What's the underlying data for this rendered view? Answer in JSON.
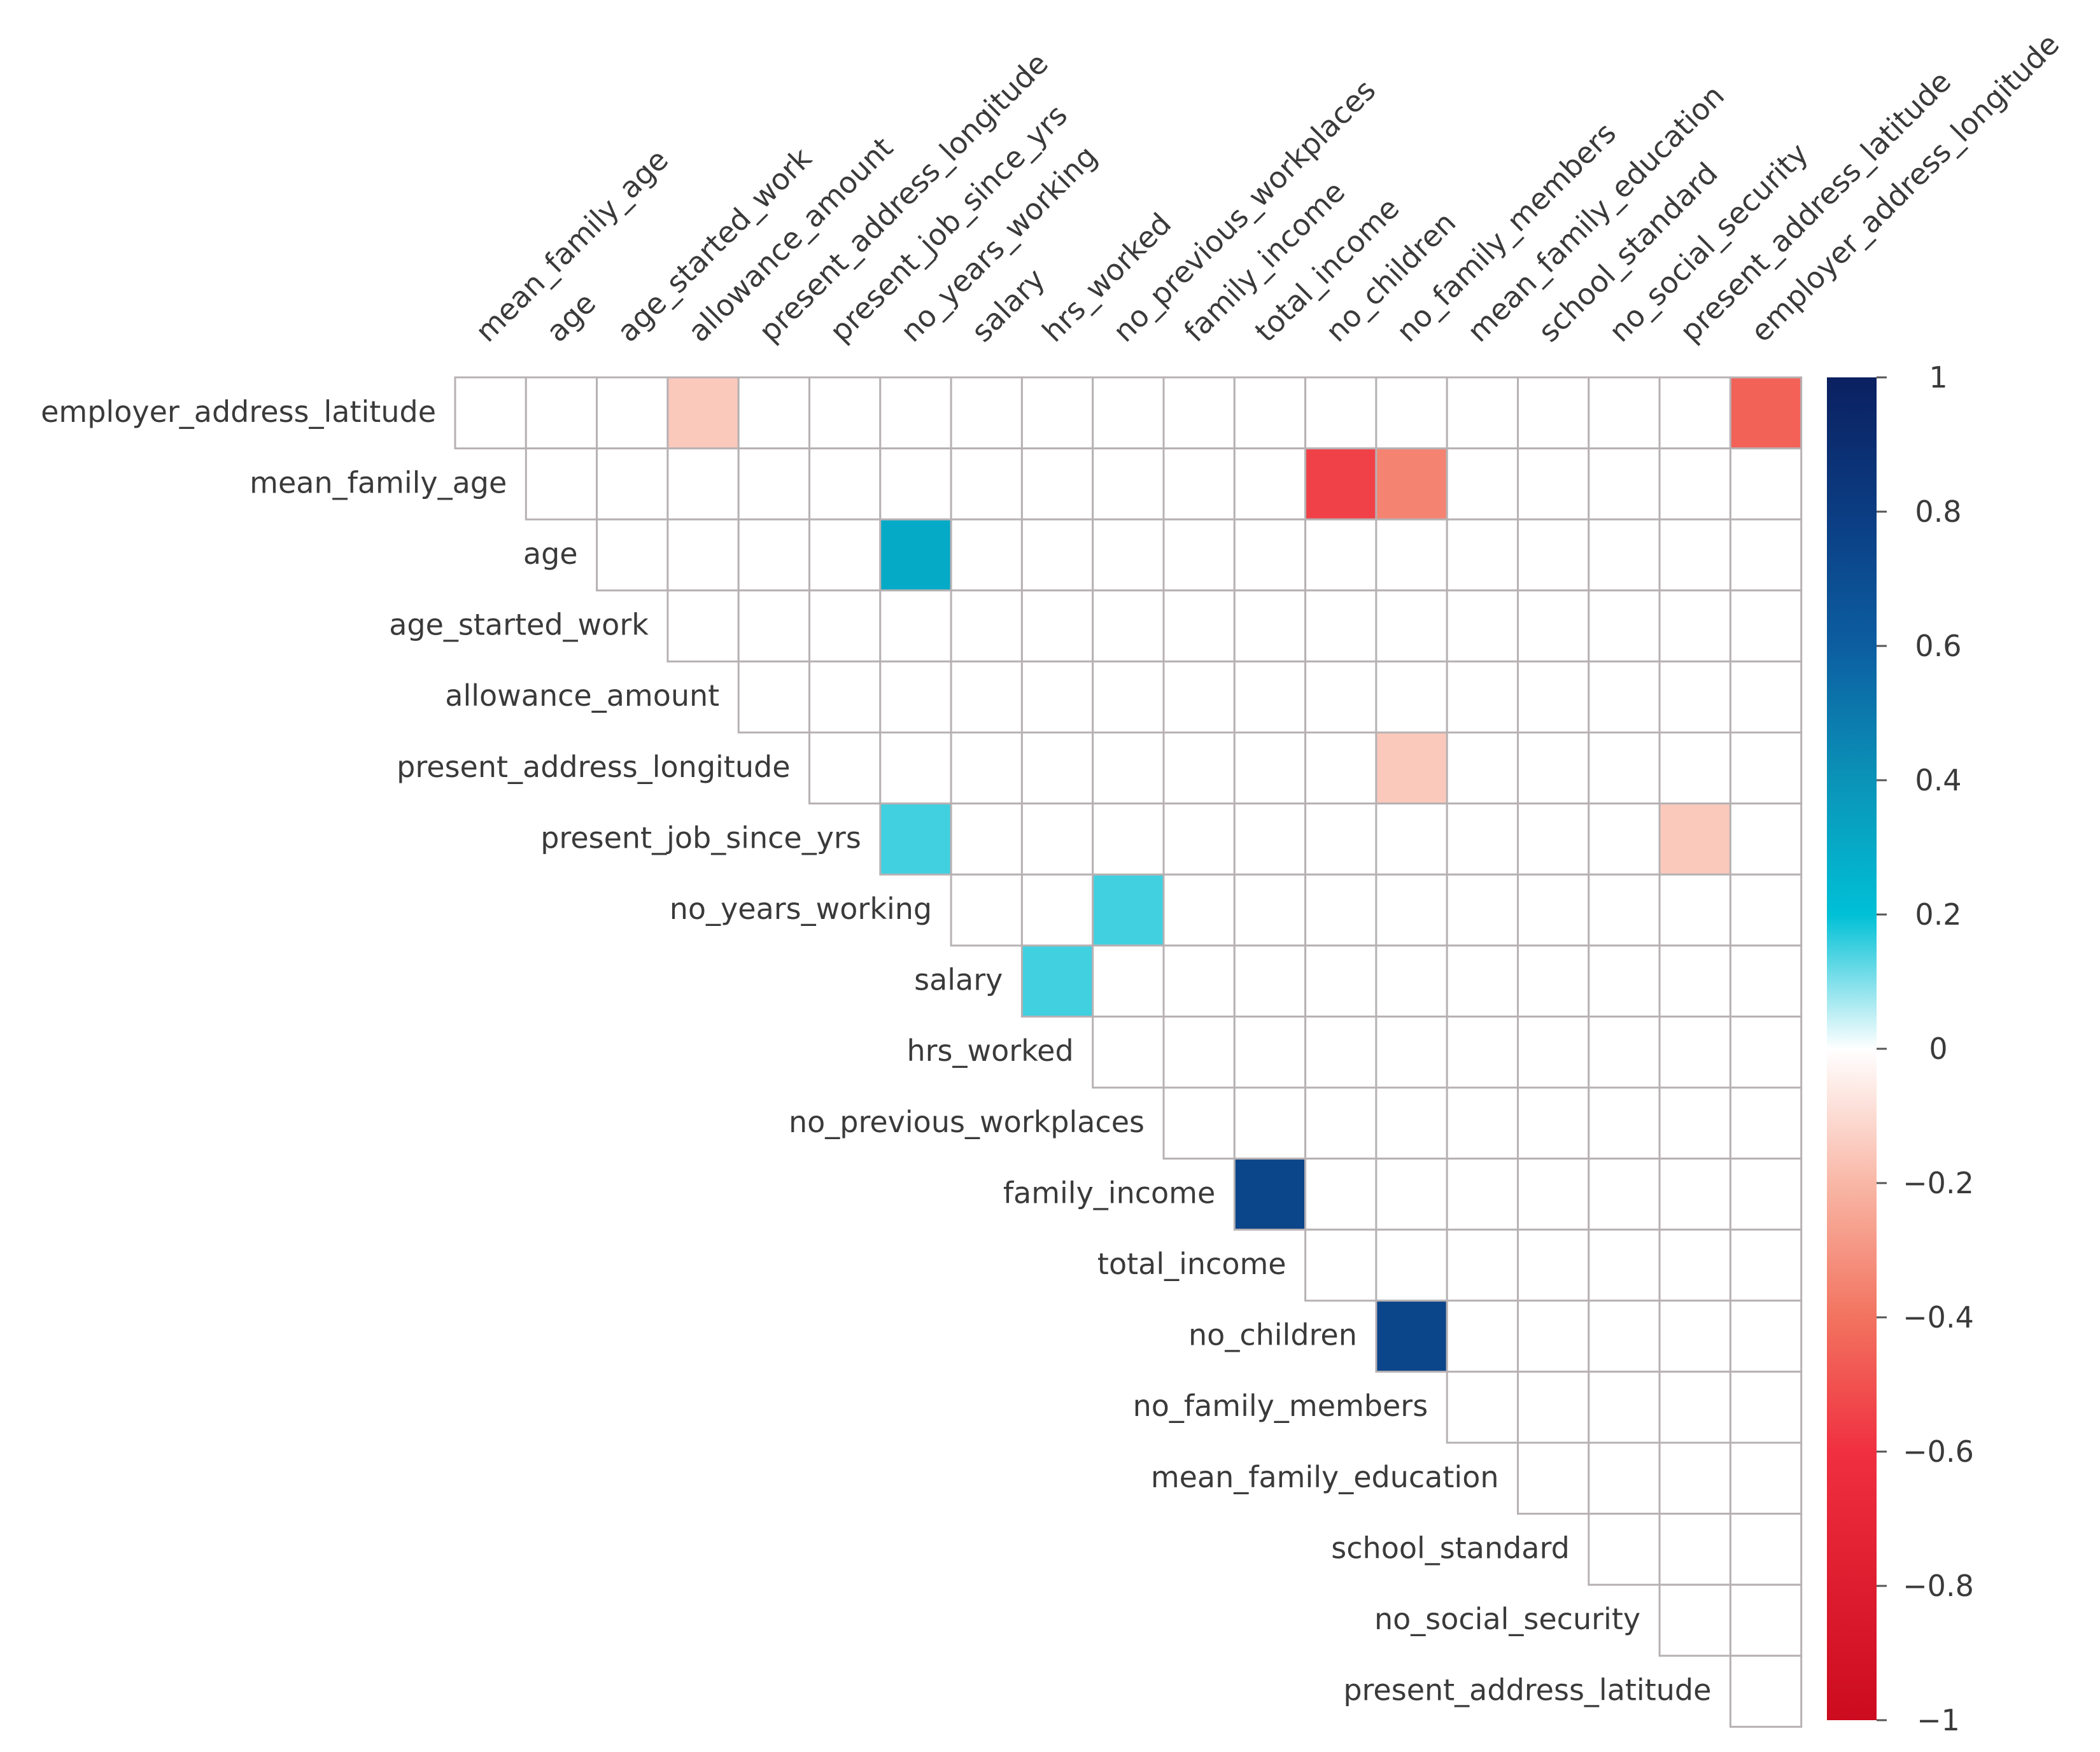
{
  "chart_data": {
    "type": "heatmap",
    "title": "",
    "variables": [
      "employer_address_latitude",
      "mean_family_age",
      "age",
      "age_started_work",
      "allowance_amount",
      "present_address_longitude",
      "present_job_since_yrs",
      "no_years_working",
      "salary",
      "hrs_worked",
      "no_previous_workplaces",
      "family_income",
      "total_income",
      "no_children",
      "no_family_members",
      "mean_family_education",
      "school_standard",
      "no_social_security",
      "present_address_latitude",
      "employer_address_longitude"
    ],
    "row_labels": [
      "employer_address_latitude",
      "mean_family_age",
      "age",
      "age_started_work",
      "allowance_amount",
      "present_address_longitude",
      "present_job_since_yrs",
      "no_years_working",
      "salary",
      "hrs_worked",
      "no_previous_workplaces",
      "family_income",
      "total_income",
      "no_children",
      "no_family_members",
      "mean_family_education",
      "school_standard",
      "no_social_security",
      "present_address_latitude"
    ],
    "column_labels": [
      "mean_family_age",
      "age",
      "age_started_work",
      "allowance_amount",
      "present_address_longitude",
      "present_job_since_yrs",
      "no_years_working",
      "salary",
      "hrs_worked",
      "no_previous_workplaces",
      "family_income",
      "total_income",
      "no_children",
      "no_family_members",
      "mean_family_education",
      "school_standard",
      "no_social_security",
      "present_address_latitude",
      "employer_address_longitude"
    ],
    "layout": "upper-triangle",
    "display_threshold": 0.1,
    "highlighted_correlations": [
      {
        "row": "employer_address_latitude",
        "col": "allowance_amount",
        "value": -0.15
      },
      {
        "row": "employer_address_latitude",
        "col": "employer_address_longitude",
        "value": -0.45
      },
      {
        "row": "mean_family_age",
        "col": "no_children",
        "value": -0.55
      },
      {
        "row": "mean_family_age",
        "col": "no_family_members",
        "value": -0.35
      },
      {
        "row": "age",
        "col": "age",
        "value": 0.4
      },
      {
        "row": "age",
        "col": "no_years_working",
        "value": 0.3
      },
      {
        "row": "present_address_longitude",
        "col": "no_family_members",
        "value": -0.15
      },
      {
        "row": "present_job_since_yrs",
        "col": "no_years_working",
        "value": 0.15
      },
      {
        "row": "present_job_since_yrs",
        "col": "present_address_latitude",
        "value": -0.15
      },
      {
        "row": "no_years_working",
        "col": "no_previous_workplaces",
        "value": 0.15
      },
      {
        "row": "salary",
        "col": "hrs_worked",
        "value": 0.15
      },
      {
        "row": "family_income",
        "col": "total_income",
        "value": 0.75
      },
      {
        "row": "no_children",
        "col": "no_family_members",
        "value": 0.75
      }
    ],
    "colorbar": {
      "range": [
        -1,
        1
      ],
      "ticks": [
        1,
        0.8,
        0.6,
        0.4,
        0.2,
        0,
        -0.2,
        -0.4,
        -0.6,
        -0.8,
        -1
      ],
      "tick_labels": [
        "1",
        "0.8",
        "0.6",
        "0.4",
        "0.2",
        "0",
        "−0.2",
        "−0.4",
        "−0.6",
        "−0.8",
        "−1"
      ],
      "position": "right"
    },
    "colorscale": [
      {
        "value": -1,
        "color": "#cc0b1f"
      },
      {
        "value": -0.6,
        "color": "#f03040"
      },
      {
        "value": -0.4,
        "color": "#f2735f"
      },
      {
        "value": -0.2,
        "color": "#f9b7a6"
      },
      {
        "value": 0,
        "color": "#ffffff"
      },
      {
        "value": 0.2,
        "color": "#00c0d6"
      },
      {
        "value": 0.4,
        "color": "#0b93b8"
      },
      {
        "value": 0.6,
        "color": "#0c5ea1"
      },
      {
        "value": 0.8,
        "color": "#0b3c82"
      },
      {
        "value": 1,
        "color": "#0b2060"
      }
    ]
  }
}
